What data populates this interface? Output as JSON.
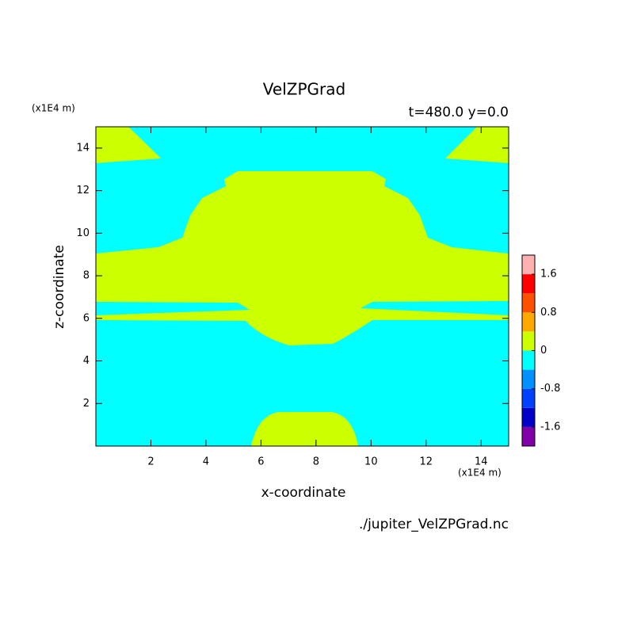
{
  "chart_data": {
    "type": "contour",
    "title": "VelZPGrad",
    "subtitle": "t=480.0 y=0.0",
    "x_label": "x-coordinate",
    "y_label": "z-coordinate",
    "x_unit": "(x1E4 m)",
    "y_unit": "(x1E4 m)",
    "source": "./jupiter_VelZPGrad.nc",
    "xlim": [
      0,
      15
    ],
    "ylim": [
      0,
      15
    ],
    "xticks": [
      2,
      4,
      6,
      8,
      10,
      12,
      14
    ],
    "yticks": [
      2,
      4,
      6,
      8,
      10,
      12,
      14
    ],
    "colorbar": {
      "levels": [
        -2,
        -1.6,
        -1.2,
        -0.8,
        -0.4,
        0,
        0.4,
        0.8,
        1.2,
        1.6,
        2
      ],
      "colors": [
        "#8000a8",
        "#0000c8",
        "#0040ff",
        "#0090ff",
        "#00ffff",
        "#ccff00",
        "#ffa800",
        "#ff5000",
        "#ff0000",
        "#ffb0b0"
      ],
      "ticks": [
        -1.6,
        -0.8,
        0,
        0.8,
        1.6
      ]
    }
  }
}
